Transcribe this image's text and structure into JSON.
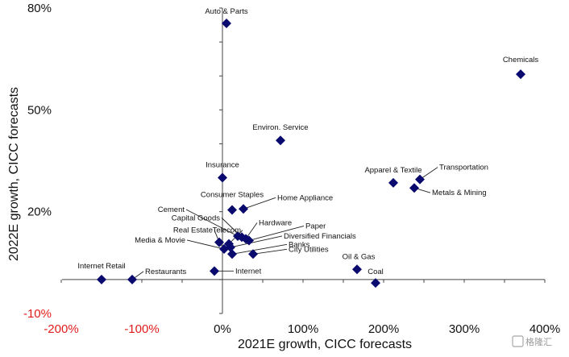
{
  "chart_data": {
    "type": "scatter",
    "title": "",
    "xlabel": "2021E growth, CICC forecasts",
    "ylabel": "2022E growth, CICC forecasts",
    "xlim": [
      -200,
      400
    ],
    "ylim": [
      -10,
      80
    ],
    "x_ticks": [
      {
        "value": -200,
        "label": "-200%",
        "negative": true
      },
      {
        "value": -100,
        "label": "-100%",
        "negative": true
      },
      {
        "value": 0,
        "label": "0%",
        "negative": false
      },
      {
        "value": 100,
        "label": "100%",
        "negative": false
      },
      {
        "value": 200,
        "label": "200%",
        "negative": false
      },
      {
        "value": 300,
        "label": "300%",
        "negative": false
      },
      {
        "value": 400,
        "label": "400%",
        "negative": false
      }
    ],
    "y_ticks": [
      {
        "value": 80,
        "label": "80%",
        "negative": false
      },
      {
        "value": 50,
        "label": "50%",
        "negative": false
      },
      {
        "value": 20,
        "label": "20%",
        "negative": false
      },
      {
        "value": -10,
        "label": "-10%",
        "negative": true
      }
    ],
    "marker_color": "#0a0a6e",
    "negative_tick_color": "#e01b1b",
    "points": [
      {
        "name": "Auto & Parts",
        "x": 5,
        "y": 75.5
      },
      {
        "name": "Chemicals",
        "x": 370,
        "y": 60.5
      },
      {
        "name": "Environ. Service",
        "x": 72,
        "y": 41
      },
      {
        "name": "Insurance",
        "x": 0,
        "y": 30
      },
      {
        "name": "Apparel & Textile",
        "x": 212,
        "y": 28.5
      },
      {
        "name": "Transportation",
        "x": 245,
        "y": 29.5
      },
      {
        "name": "Metals & Mining",
        "x": 238,
        "y": 27
      },
      {
        "name": "Consumer Staples",
        "x": 12,
        "y": 20.5
      },
      {
        "name": "Home Appliance",
        "x": 26,
        "y": 20.8
      },
      {
        "name": "Cement",
        "x": 19,
        "y": 12.8
      },
      {
        "name": "Capital Goods",
        "x": 24,
        "y": 12.5
      },
      {
        "name": "Hardware",
        "x": 29,
        "y": 12
      },
      {
        "name": "Paper",
        "x": 33,
        "y": 11.5
      },
      {
        "name": "Real Estate",
        "x": -4,
        "y": 11
      },
      {
        "name": "Telecom",
        "x": 8,
        "y": 10.5
      },
      {
        "name": "Diversified Financials",
        "x": 10,
        "y": 9.5
      },
      {
        "name": "Media & Movie",
        "x": 2,
        "y": 9
      },
      {
        "name": "Banks",
        "x": 12,
        "y": 7.5
      },
      {
        "name": "City Utilities",
        "x": 38,
        "y": 7.5
      },
      {
        "name": "Oil & Gas",
        "x": 167,
        "y": 3
      },
      {
        "name": "Internet Retail",
        "x": -150,
        "y": 0
      },
      {
        "name": "Restaurants",
        "x": -112,
        "y": 0
      },
      {
        "name": "Internet",
        "x": -10,
        "y": 2.5
      },
      {
        "name": "Coal",
        "x": 190,
        "y": -1
      }
    ]
  },
  "watermark": {
    "text": "格隆汇"
  }
}
